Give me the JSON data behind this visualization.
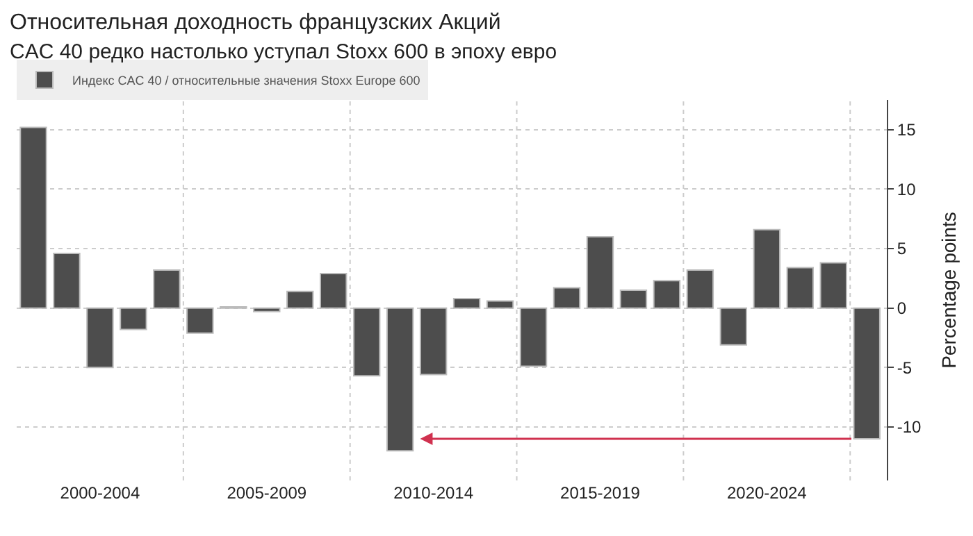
{
  "chart_data": {
    "type": "bar",
    "title": "Относительная доходность французских Акций",
    "subtitle": "CAC 40 редко настолько уступал Stoxx 600 в эпоху евро",
    "ylabel": "Percentage points",
    "categories": [
      null,
      null,
      "2000-2004",
      null,
      null,
      null,
      null,
      "2005-2009",
      null,
      null,
      null,
      null,
      "2010-2014",
      null,
      null,
      null,
      null,
      "2015-2019",
      null,
      null,
      null,
      null,
      "2020-2024",
      null,
      null,
      null
    ],
    "series": [
      {
        "name": "Индекс CAC 40 / относительные значения Stoxx Europe 600",
        "color": "#4d4d4d",
        "values": [
          15.2,
          4.6,
          -5.0,
          -1.8,
          3.2,
          -2.1,
          0.1,
          -0.3,
          1.4,
          2.9,
          -5.7,
          -12.0,
          -5.6,
          0.8,
          0.6,
          -4.9,
          1.7,
          6.0,
          1.5,
          2.3,
          3.2,
          -3.1,
          6.6,
          3.4,
          3.8,
          -11.0
        ]
      }
    ],
    "ylim": [
      -14.5,
      17.5
    ],
    "yticks": [
      -10,
      -5,
      0,
      5,
      10,
      15
    ],
    "grid": true,
    "legend": "top left"
  }
}
